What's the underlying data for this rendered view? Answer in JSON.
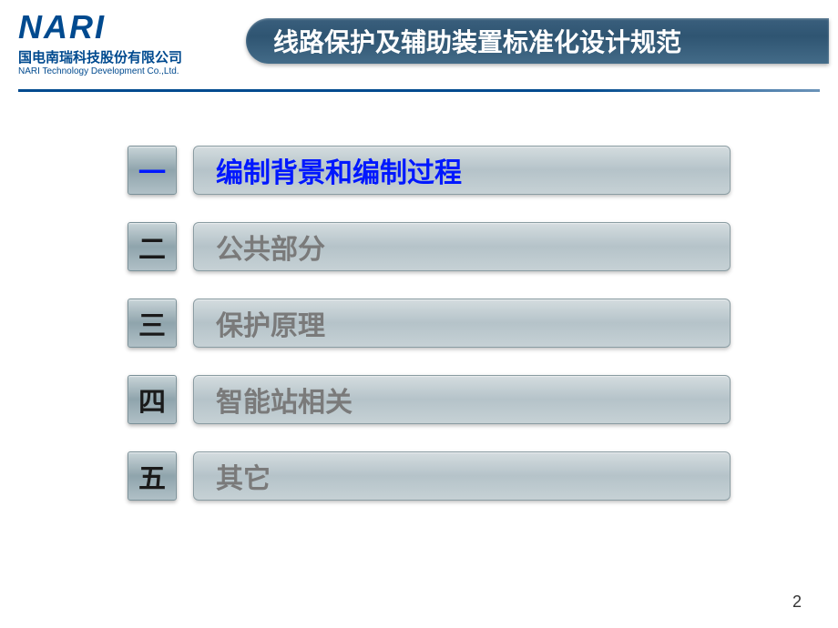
{
  "logo": {
    "main": "NARI",
    "sub_cn": "国电南瑞科技股份有限公司",
    "sub_en": "NARI Technology Development Co.,Ltd."
  },
  "title": "线路保护及辅助装置标准化设计规范",
  "toc": [
    {
      "num": "一",
      "label": "编制背景和编制过程",
      "active": true
    },
    {
      "num": "二",
      "label": "公共部分",
      "active": false
    },
    {
      "num": "三",
      "label": "保护原理",
      "active": false
    },
    {
      "num": "四",
      "label": "智能站相关",
      "active": false
    },
    {
      "num": "五",
      "label": "其它",
      "active": false
    }
  ],
  "page_number": "2",
  "colors": {
    "brand": "#004a8f",
    "title_bg_top": "#3a5f7d",
    "title_bg_bot": "#436b88",
    "active_text": "#0018ff",
    "inactive_text": "#7a7a7a",
    "box_bg_top": "#d4dcdf",
    "box_bg_mid": "#b5c3c9"
  }
}
